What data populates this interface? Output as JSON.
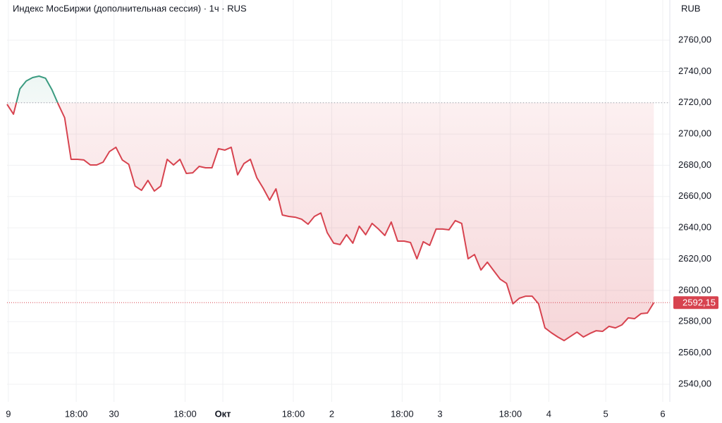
{
  "chart_data": {
    "type": "baseline",
    "title": "Индекс МосБиржи (дополнительная сессия) · 1ч · RUS",
    "currency": "RUB",
    "x": [
      0,
      1,
      2,
      3,
      4,
      5,
      6,
      7,
      8,
      9,
      10,
      11,
      12,
      13,
      14,
      15,
      16,
      17,
      18,
      19,
      20,
      21,
      22,
      23,
      24,
      25,
      26,
      27,
      28,
      29,
      30,
      31,
      32,
      33,
      34,
      35,
      36,
      37,
      38,
      39,
      40,
      41,
      42,
      43,
      44,
      45,
      46,
      47,
      48,
      49,
      50,
      51,
      52,
      53,
      54,
      55,
      56,
      57,
      58,
      59,
      60,
      61,
      62,
      63,
      64,
      65,
      66,
      67,
      68,
      69,
      70,
      71,
      72,
      73,
      74,
      75,
      76,
      77,
      78,
      79,
      80,
      81,
      82,
      83,
      84,
      85,
      86,
      87,
      88,
      89,
      90,
      91,
      92,
      93,
      94,
      95,
      96,
      97,
      98,
      99,
      100,
      101
    ],
    "values": [
      2719.0,
      2712.7,
      2728.9,
      2733.9,
      2736.1,
      2737.0,
      2735.7,
      2728.4,
      2719.0,
      2710.4,
      2683.8,
      2683.8,
      2683.4,
      2680.2,
      2680.2,
      2682.0,
      2688.8,
      2691.5,
      2683.4,
      2680.6,
      2666.7,
      2664.0,
      2670.3,
      2663.5,
      2666.7,
      2683.8,
      2680.2,
      2683.8,
      2674.8,
      2675.2,
      2679.3,
      2678.4,
      2678.4,
      2690.6,
      2689.7,
      2691.5,
      2673.9,
      2681.1,
      2683.8,
      2672.1,
      2665.3,
      2657.7,
      2664.9,
      2648.2,
      2647.3,
      2646.8,
      2645.5,
      2642.3,
      2647.3,
      2649.5,
      2636.9,
      2630.2,
      2629.3,
      2635.6,
      2630.2,
      2641.0,
      2635.6,
      2642.8,
      2639.2,
      2635.1,
      2643.7,
      2631.5,
      2631.5,
      2630.6,
      2620.2,
      2631.1,
      2628.8,
      2639.2,
      2639.2,
      2638.7,
      2644.6,
      2642.8,
      2620.2,
      2622.9,
      2613.0,
      2618.0,
      2612.6,
      2607.2,
      2604.5,
      2591.4,
      2595.0,
      2596.3,
      2596.3,
      2591.4,
      2576.0,
      2572.9,
      2570.2,
      2567.9,
      2570.6,
      2573.3,
      2570.2,
      2572.4,
      2574.2,
      2573.8,
      2577.0,
      2576.0,
      2577.9,
      2582.4,
      2581.9,
      2585.1,
      2585.5,
      2592.15
    ],
    "baseline": 2720,
    "last": {
      "value": 2592.15,
      "label": "2592,15"
    },
    "up_color": "#3a9b80",
    "down_color": "#d7434f",
    "xlim": [
      0,
      103.5
    ],
    "xticks": [
      {
        "value": 0.2,
        "label": "9"
      },
      {
        "value": 10.8,
        "label": "18:00"
      },
      {
        "value": 16.7,
        "label": "30"
      },
      {
        "value": 27.8,
        "label": "18:00"
      },
      {
        "value": 33.7,
        "label": "Окт"
      },
      {
        "value": 44.7,
        "label": "18:00"
      },
      {
        "value": 50.7,
        "label": "2"
      },
      {
        "value": 61.7,
        "label": "18:00"
      },
      {
        "value": 67.6,
        "label": "3"
      },
      {
        "value": 78.6,
        "label": "18:00"
      },
      {
        "value": 84.6,
        "label": "4"
      },
      {
        "value": 93.5,
        "label": "5"
      },
      {
        "value": 102.4,
        "label": "6"
      }
    ],
    "ylim": [
      2528.7,
      2785.7
    ],
    "yticks": [
      {
        "value": 2540,
        "label": "2540,00"
      },
      {
        "value": 2560,
        "label": "2560,00"
      },
      {
        "value": 2580,
        "label": "2580,00"
      },
      {
        "value": 2600,
        "label": "2600,00"
      },
      {
        "value": 2620,
        "label": "2620,00"
      },
      {
        "value": 2640,
        "label": "2640,00"
      },
      {
        "value": 2660,
        "label": "2660,00"
      },
      {
        "value": 2680,
        "label": "2680,00"
      },
      {
        "value": 2700,
        "label": "2700,00"
      },
      {
        "value": 2720,
        "label": "2720,00"
      },
      {
        "value": 2740,
        "label": "2740,00"
      },
      {
        "value": 2760,
        "label": "2760,00"
      }
    ],
    "grid": true
  }
}
